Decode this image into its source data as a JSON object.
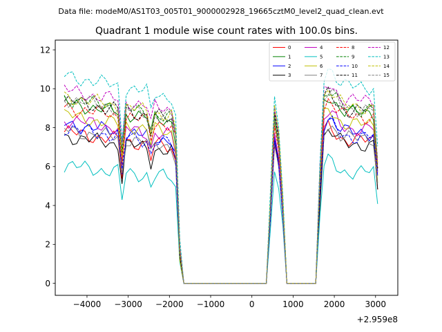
{
  "suptitle": "Data file: modeM0/AS1T03_005T01_9000002928_19665cztM0_level2_quad_clean.evt",
  "chart_data": {
    "type": "line",
    "title": "Quadrant 1 module wise count rates with 100.0s bins.",
    "xlabel": "",
    "ylabel": "",
    "x_offset_label": "+2.959e8",
    "xlim": [
      -4770,
      3540
    ],
    "ylim": [
      -0.62,
      12.5
    ],
    "xticks": [
      -4000,
      -3000,
      -2000,
      -1000,
      0,
      1000,
      2000,
      3000
    ],
    "xtick_labels": [
      "−4000",
      "−3000",
      "−2000",
      "−1000",
      "0",
      "1000",
      "2000",
      "3000"
    ],
    "yticks": [
      0,
      2,
      4,
      6,
      8,
      10,
      12
    ],
    "ytick_labels": [
      "0",
      "2",
      "4",
      "6",
      "8",
      "10",
      "12"
    ],
    "legend_position": "top-right",
    "segments": [
      {
        "start": -4550,
        "end": -1750,
        "step": 100
      },
      {
        "start": -1650,
        "end": 350,
        "step": 100,
        "zero": true
      },
      {
        "start": 450,
        "end": 750,
        "step": 100
      },
      {
        "start": 850,
        "end": 1550,
        "step": 100,
        "zero": true
      },
      {
        "start": 1650,
        "end": 3050,
        "step": 100
      }
    ],
    "series": [
      {
        "name": "0",
        "color": "#ff0000",
        "dash": "solid",
        "base": 7.2,
        "p1": 7.5
      },
      {
        "name": "1",
        "color": "#008000",
        "dash": "solid",
        "base": 8.6,
        "p1": 8.8
      },
      {
        "name": "2",
        "color": "#0000ff",
        "dash": "solid",
        "base": 7.6,
        "p1": 7.9
      },
      {
        "name": "3",
        "color": "#000000",
        "dash": "solid",
        "base": 7.0,
        "p1": 7.8
      },
      {
        "name": "4",
        "color": "#bf00bf",
        "dash": "solid",
        "base": 7.8,
        "p1": 8.1
      },
      {
        "name": "5",
        "color": "#00bfbf",
        "dash": "solid",
        "base": 5.6,
        "p1": 6.1
      },
      {
        "name": "6",
        "color": "#bfbf00",
        "dash": "solid",
        "base": 8.0,
        "p1": 8.6
      },
      {
        "name": "7",
        "color": "#808080",
        "dash": "solid",
        "base": 7.3,
        "p1": 7.5
      },
      {
        "name": "8",
        "color": "#ff0000",
        "dash": "dashed",
        "base": 8.4,
        "p1": 8.6
      },
      {
        "name": "9",
        "color": "#008000",
        "dash": "dashed",
        "base": 8.8,
        "p1": 9.2
      },
      {
        "name": "10",
        "color": "#0000ff",
        "dash": "dashed",
        "base": 7.4,
        "p1": 7.7
      },
      {
        "name": "11",
        "color": "#000000",
        "dash": "dashed",
        "base": 8.7,
        "p1": 9.3
      },
      {
        "name": "12",
        "color": "#bf00bf",
        "dash": "dashed",
        "base": 9.2,
        "p1": 9.4
      },
      {
        "name": "13",
        "color": "#00bfbf",
        "dash": "dashed",
        "base": 9.9,
        "p1": 10.1
      },
      {
        "name": "14",
        "color": "#bfbf00",
        "dash": "dashed",
        "base": 8.9,
        "p1": 9.7
      },
      {
        "name": "15",
        "color": "#808080",
        "dash": "dashed",
        "base": 8.8,
        "p1": 8.8
      }
    ]
  }
}
